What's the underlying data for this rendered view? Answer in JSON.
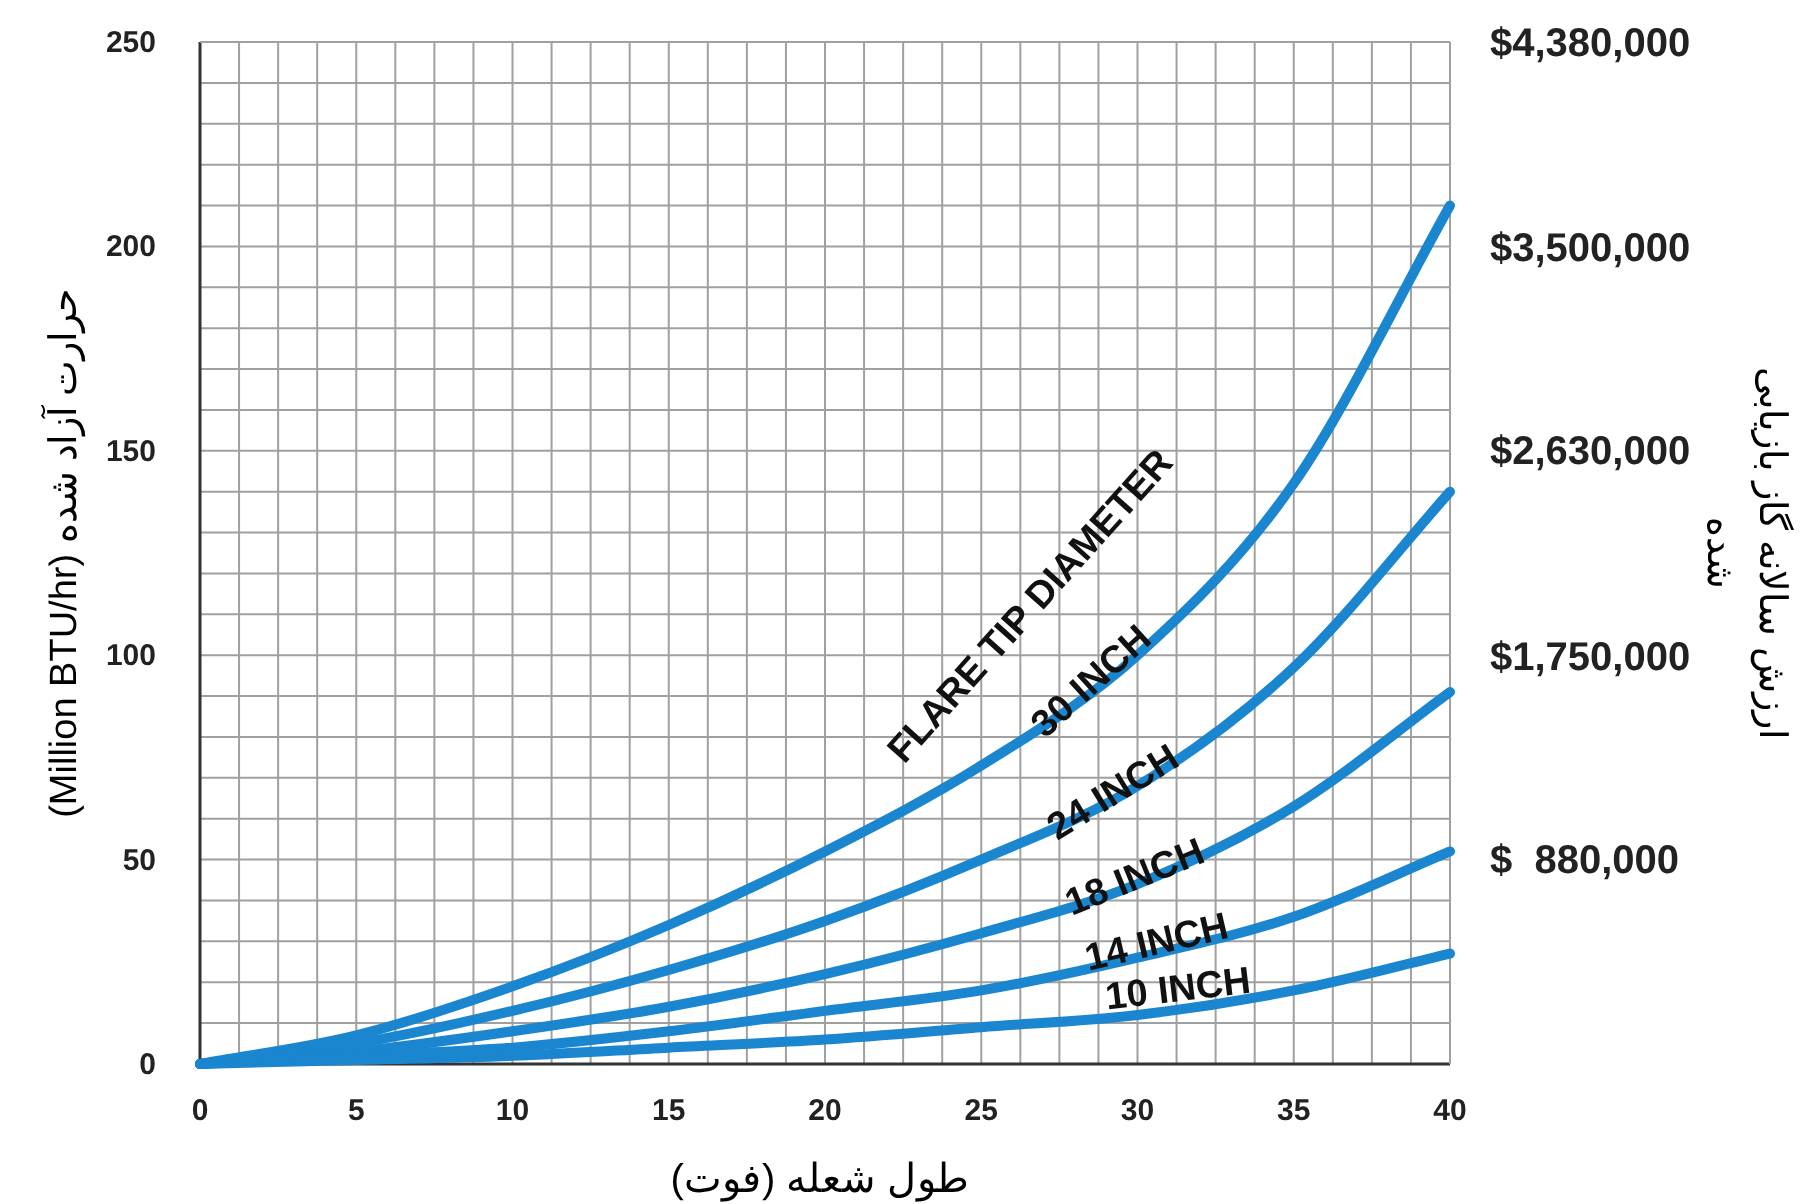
{
  "chart_data": {
    "type": "line",
    "xlabel": "طول شعله (فوت)",
    "ylabel": "حرارت آزاد شده (Million BTU/hr)",
    "y2label": "ارزش سالانه گاز بازیابی شده",
    "legend_title": "FLARE TIP DIAMETER",
    "legend": false,
    "grid": true,
    "marker": "none",
    "line_style": "solid",
    "x": [
      0,
      5,
      10,
      15,
      20,
      25,
      30,
      35,
      40
    ],
    "xlim": [
      0,
      40
    ],
    "ylim": [
      0,
      250
    ],
    "y2lim": [
      0,
      4380000
    ],
    "xticks": [
      0,
      {
        "value": 1.25,
        "label": null
      },
      {
        "value": 2.5,
        "label": null
      },
      {
        "value": 3.75,
        "label": null
      },
      5,
      {
        "value": 6.25,
        "label": null
      },
      {
        "value": 7.5,
        "label": null
      },
      {
        "value": 8.75,
        "label": null
      },
      10,
      {
        "value": 11.25,
        "label": null
      },
      {
        "value": 12.5,
        "label": null
      },
      {
        "value": 13.75,
        "label": null
      },
      15,
      {
        "value": 16.25,
        "label": null
      },
      {
        "value": 17.5,
        "label": null
      },
      {
        "value": 18.75,
        "label": null
      },
      20,
      {
        "value": 21.25,
        "label": null
      },
      {
        "value": 22.5,
        "label": null
      },
      {
        "value": 23.75,
        "label": null
      },
      25,
      {
        "value": 26.25,
        "label": null
      },
      {
        "value": 27.5,
        "label": null
      },
      {
        "value": 28.75,
        "label": null
      },
      30,
      {
        "value": 31.25,
        "label": null
      },
      {
        "value": 32.5,
        "label": null
      },
      {
        "value": 33.75,
        "label": null
      },
      35,
      {
        "value": 36.25,
        "label": null
      },
      {
        "value": 37.5,
        "label": null
      },
      {
        "value": 38.75,
        "label": null
      },
      40
    ],
    "yticks": [
      0,
      {
        "value": 10,
        "label": null
      },
      {
        "value": 20,
        "label": null
      },
      {
        "value": 30,
        "label": null
      },
      {
        "value": 40,
        "label": null
      },
      50,
      {
        "value": 60,
        "label": null
      },
      {
        "value": 70,
        "label": null
      },
      {
        "value": 80,
        "label": null
      },
      {
        "value": 90,
        "label": null
      },
      100,
      {
        "value": 110,
        "label": null
      },
      {
        "value": 120,
        "label": null
      },
      {
        "value": 130,
        "label": null
      },
      {
        "value": 140,
        "label": null
      },
      150,
      {
        "value": 160,
        "label": null
      },
      {
        "value": 170,
        "label": null
      },
      {
        "value": 180,
        "label": null
      },
      {
        "value": 190,
        "label": null
      },
      200,
      {
        "value": 210,
        "label": null
      },
      {
        "value": 220,
        "label": null
      },
      {
        "value": 230,
        "label": null
      },
      {
        "value": 240,
        "label": null
      },
      250
    ],
    "y2ticks": [
      {
        "value": 880000,
        "label": "$  880,000"
      },
      {
        "value": 1750000,
        "label": "$1,750,000"
      },
      {
        "value": 2630000,
        "label": "$2,630,000"
      },
      {
        "value": 3500000,
        "label": "$3,500,000"
      },
      {
        "value": 4380000,
        "label": "$4,380,000"
      }
    ],
    "series": [
      {
        "name": "30 INCH",
        "color": "#1a86d0",
        "values": [
          0,
          7,
          19,
          34,
          52,
          73,
          100,
          142,
          210
        ]
      },
      {
        "name": "24 INCH",
        "color": "#1a86d0",
        "values": [
          0,
          5,
          13,
          23,
          35,
          50,
          68,
          97,
          140
        ]
      },
      {
        "name": "18 INCH",
        "color": "#1a86d0",
        "values": [
          0,
          3,
          8,
          14,
          22,
          32,
          44,
          63,
          91
        ]
      },
      {
        "name": "14 INCH",
        "color": "#1a86d0",
        "values": [
          0,
          2,
          4,
          8,
          13,
          18,
          26,
          36,
          52
        ]
      },
      {
        "name": "10 INCH",
        "color": "#1a86d0",
        "values": [
          0,
          1,
          2,
          4,
          6,
          9,
          12,
          18,
          27
        ]
      }
    ]
  }
}
